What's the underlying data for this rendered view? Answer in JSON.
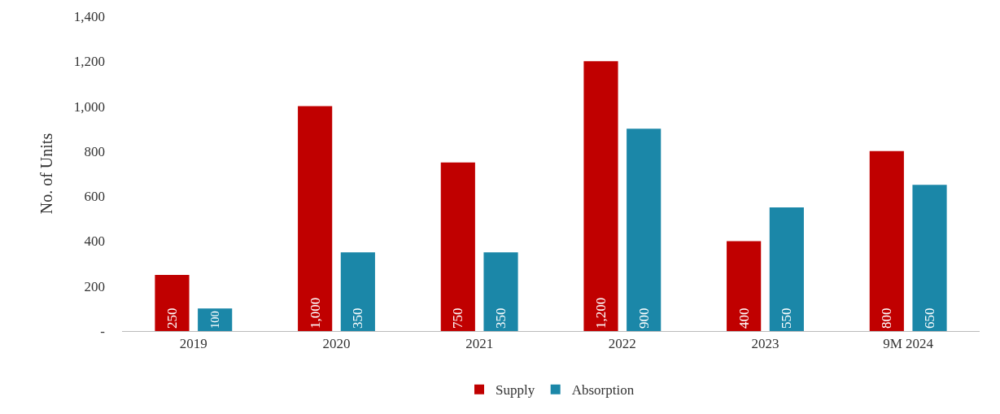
{
  "chart_data": {
    "type": "bar",
    "ylabel": "No. of Units",
    "categories": [
      "2019",
      "2020",
      "2021",
      "2022",
      "2023",
      "9M 2024"
    ],
    "series": [
      {
        "name": "Supply",
        "color": "#c00000",
        "values": [
          250,
          1000,
          750,
          1200,
          400,
          800
        ],
        "value_labels": [
          "250",
          "1,000",
          "750",
          "1,200",
          "400",
          "800"
        ]
      },
      {
        "name": "Absorption",
        "color": "#1b87a8",
        "values": [
          100,
          350,
          350,
          900,
          550,
          650
        ],
        "value_labels": [
          "100",
          "350",
          "350",
          "900",
          "550",
          "650"
        ]
      }
    ],
    "ylim": [
      0,
      1400
    ],
    "yticks": [
      {
        "value": 0,
        "label": "-"
      },
      200,
      400,
      600,
      800,
      {
        "value": 1000,
        "label": "1,000"
      },
      {
        "value": 1200,
        "label": "1,200"
      },
      {
        "value": 1400,
        "label": "1,400"
      }
    ],
    "grid": false,
    "legend": "bottom"
  }
}
